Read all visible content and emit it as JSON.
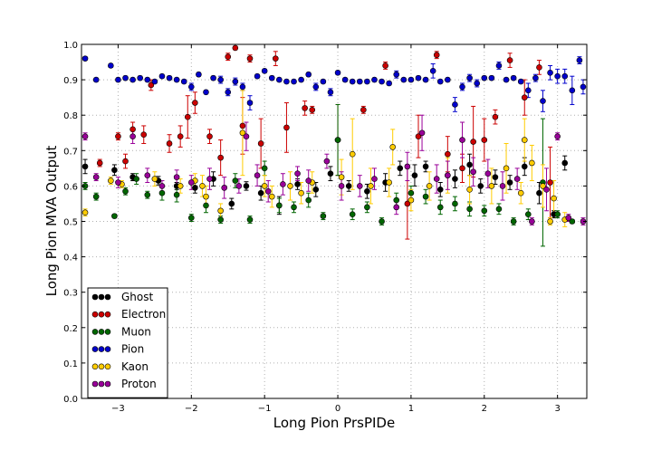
{
  "chart_data": {
    "type": "scatter",
    "title": "",
    "xlabel": "Long Pion PrsPIDe",
    "ylabel": "Long Pion MVA Output",
    "xlim": [
      -3.5,
      3.4
    ],
    "ylim": [
      0.0,
      1.0
    ],
    "grid": true,
    "legend_position": "bottom-left",
    "xticks": [
      -3,
      -2,
      -1,
      0,
      1,
      2,
      3
    ],
    "xtick_labels": [
      "−3",
      "−2",
      "−1",
      "0",
      "1",
      "2",
      "3"
    ],
    "yticks": [
      0.0,
      0.1,
      0.2,
      0.3,
      0.4,
      0.5,
      0.6,
      0.7,
      0.8,
      0.9,
      1.0
    ],
    "ytick_labels": [
      "0.0",
      "0.1",
      "0.2",
      "0.3",
      "0.4",
      "0.5",
      "0.6",
      "0.7",
      "0.8",
      "0.9",
      "1.0"
    ],
    "series": [
      {
        "name": "Ghost",
        "color": "#000000",
        "x": [
          -3.45,
          -3.05,
          -2.8,
          -2.45,
          -2.2,
          -1.95,
          -1.7,
          -1.45,
          -1.25,
          -1.05,
          -0.8,
          -0.55,
          -0.3,
          -0.1,
          0.15,
          0.4,
          0.65,
          0.85,
          1.05,
          1.2,
          1.4,
          1.6,
          1.8,
          1.95,
          2.15,
          2.35,
          2.55,
          2.75,
          2.95,
          3.1
        ],
        "y": [
          0.655,
          0.645,
          0.625,
          0.615,
          0.6,
          0.595,
          0.62,
          0.55,
          0.6,
          0.58,
          0.545,
          0.605,
          0.59,
          0.635,
          0.6,
          0.585,
          0.61,
          0.65,
          0.63,
          0.655,
          0.59,
          0.62,
          0.66,
          0.6,
          0.625,
          0.61,
          0.655,
          0.58,
          0.52,
          0.665
        ],
        "err": [
          0.02,
          0.015,
          0.01,
          0.012,
          0.01,
          0.015,
          0.02,
          0.015,
          0.012,
          0.02,
          0.025,
          0.015,
          0.02,
          0.02,
          0.015,
          0.02,
          0.025,
          0.02,
          0.03,
          0.015,
          0.02,
          0.025,
          0.03,
          0.02,
          0.02,
          0.02,
          0.025,
          0.03,
          0.01,
          0.02
        ]
      },
      {
        "name": "Electron",
        "color": "#cc0000",
        "x": [
          -3.25,
          -3.0,
          -2.9,
          -2.8,
          -2.65,
          -2.55,
          -2.3,
          -2.15,
          -2.05,
          -1.95,
          -1.75,
          -1.6,
          -1.5,
          -1.4,
          -1.3,
          -1.2,
          -1.05,
          -0.85,
          -0.7,
          -0.45,
          -0.35,
          0.0,
          0.35,
          0.65,
          0.95,
          1.1,
          1.35,
          1.5,
          1.7,
          1.85,
          2.0,
          2.15,
          2.35,
          2.55,
          2.75,
          2.9
        ],
        "y": [
          0.665,
          0.74,
          0.67,
          0.76,
          0.745,
          0.885,
          0.72,
          0.74,
          0.795,
          0.835,
          0.74,
          0.68,
          0.965,
          0.99,
          0.77,
          0.96,
          0.72,
          0.96,
          0.765,
          0.82,
          0.815,
          0.73,
          0.815,
          0.94,
          0.55,
          0.74,
          0.97,
          0.69,
          0.65,
          0.725,
          0.73,
          0.795,
          0.955,
          0.85,
          0.935,
          0.61
        ],
        "err": [
          0.01,
          0.01,
          0.02,
          0.02,
          0.025,
          0.015,
          0.025,
          0.03,
          0.06,
          0.03,
          0.02,
          0.05,
          0.01,
          0.005,
          0.08,
          0.01,
          0.07,
          0.02,
          0.07,
          0.02,
          0.01,
          0.1,
          0.01,
          0.01,
          0.1,
          0.06,
          0.01,
          0.05,
          0.04,
          0.1,
          0.06,
          0.02,
          0.02,
          0.05,
          0.02,
          0.1
        ]
      },
      {
        "name": "Muon",
        "color": "#006600",
        "x": [
          -3.45,
          -3.3,
          -3.05,
          -2.9,
          -2.75,
          -2.6,
          -2.4,
          -2.2,
          -2.0,
          -1.8,
          -1.6,
          -1.4,
          -1.2,
          -1.0,
          -0.8,
          -0.6,
          -0.4,
          -0.2,
          0.0,
          0.2,
          0.4,
          0.6,
          0.8,
          1.0,
          1.2,
          1.4,
          1.6,
          1.8,
          2.0,
          2.2,
          2.4,
          2.6,
          2.8,
          3.0,
          3.2
        ],
        "y": [
          0.6,
          0.57,
          0.515,
          0.585,
          0.62,
          0.575,
          0.58,
          0.575,
          0.51,
          0.545,
          0.505,
          0.615,
          0.505,
          0.65,
          0.545,
          0.54,
          0.56,
          0.515,
          0.73,
          0.52,
          0.54,
          0.5,
          0.56,
          0.58,
          0.57,
          0.54,
          0.55,
          0.535,
          0.53,
          0.535,
          0.5,
          0.52,
          0.61,
          0.52,
          0.5
        ],
        "err": [
          0.01,
          0.01,
          0.005,
          0.01,
          0.015,
          0.01,
          0.02,
          0.02,
          0.01,
          0.02,
          0.01,
          0.02,
          0.01,
          0.02,
          0.02,
          0.015,
          0.02,
          0.01,
          0.1,
          0.015,
          0.015,
          0.01,
          0.02,
          0.02,
          0.02,
          0.02,
          0.02,
          0.02,
          0.015,
          0.015,
          0.01,
          0.015,
          0.18,
          0.01,
          0.005
        ]
      },
      {
        "name": "Pion",
        "color": "#0000cc",
        "x": [
          -3.45,
          -3.3,
          -3.1,
          -3.0,
          -2.9,
          -2.8,
          -2.7,
          -2.6,
          -2.5,
          -2.4,
          -2.3,
          -2.2,
          -2.1,
          -2.0,
          -1.9,
          -1.8,
          -1.7,
          -1.6,
          -1.5,
          -1.4,
          -1.3,
          -1.2,
          -1.1,
          -1.0,
          -0.9,
          -0.8,
          -0.7,
          -0.6,
          -0.5,
          -0.4,
          -0.3,
          -0.2,
          -0.1,
          0.0,
          0.1,
          0.2,
          0.3,
          0.4,
          0.5,
          0.6,
          0.7,
          0.8,
          0.9,
          1.0,
          1.1,
          1.2,
          1.3,
          1.4,
          1.5,
          1.6,
          1.7,
          1.8,
          1.9,
          2.0,
          2.1,
          2.2,
          2.3,
          2.4,
          2.5,
          2.6,
          2.7,
          2.8,
          2.9,
          3.0,
          3.1,
          3.2,
          3.3,
          3.35
        ],
        "y": [
          0.96,
          0.9,
          0.94,
          0.9,
          0.905,
          0.9,
          0.905,
          0.9,
          0.895,
          0.91,
          0.905,
          0.9,
          0.895,
          0.88,
          0.915,
          0.865,
          0.905,
          0.9,
          0.865,
          0.895,
          0.88,
          0.835,
          0.91,
          0.925,
          0.905,
          0.9,
          0.895,
          0.895,
          0.9,
          0.915,
          0.88,
          0.895,
          0.865,
          0.92,
          0.9,
          0.895,
          0.895,
          0.895,
          0.9,
          0.895,
          0.89,
          0.915,
          0.9,
          0.9,
          0.905,
          0.9,
          0.925,
          0.895,
          0.9,
          0.83,
          0.88,
          0.905,
          0.89,
          0.905,
          0.905,
          0.94,
          0.9,
          0.905,
          0.895,
          0.87,
          0.905,
          0.84,
          0.92,
          0.91,
          0.91,
          0.87,
          0.955,
          0.88
        ],
        "err": [
          0.005,
          0.005,
          0.005,
          0.005,
          0.005,
          0.005,
          0.005,
          0.005,
          0.005,
          0.005,
          0.005,
          0.005,
          0.005,
          0.01,
          0.005,
          0.005,
          0.005,
          0.01,
          0.01,
          0.01,
          0.01,
          0.02,
          0.005,
          0.005,
          0.005,
          0.005,
          0.005,
          0.005,
          0.005,
          0.005,
          0.01,
          0.005,
          0.01,
          0.005,
          0.005,
          0.005,
          0.005,
          0.005,
          0.005,
          0.005,
          0.005,
          0.01,
          0.005,
          0.005,
          0.005,
          0.005,
          0.02,
          0.005,
          0.005,
          0.02,
          0.01,
          0.01,
          0.01,
          0.005,
          0.005,
          0.01,
          0.005,
          0.005,
          0.005,
          0.02,
          0.01,
          0.03,
          0.02,
          0.02,
          0.02,
          0.04,
          0.01,
          0.02
        ]
      },
      {
        "name": "Kaon",
        "color": "#ffcc00",
        "x": [
          -3.45,
          -3.1,
          -2.95,
          -2.5,
          -2.15,
          -1.95,
          -1.85,
          -1.8,
          -1.6,
          -1.3,
          -1.0,
          -0.9,
          -0.65,
          -0.5,
          -0.35,
          0.05,
          0.2,
          0.45,
          0.7,
          0.75,
          1.0,
          1.25,
          1.5,
          1.8,
          2.1,
          2.3,
          2.5,
          2.55,
          2.65,
          2.8,
          2.9,
          2.95,
          3.1
        ],
        "y": [
          0.525,
          0.615,
          0.605,
          0.62,
          0.6,
          0.615,
          0.6,
          0.57,
          0.53,
          0.75,
          0.6,
          0.57,
          0.6,
          0.58,
          0.61,
          0.625,
          0.69,
          0.6,
          0.61,
          0.71,
          0.56,
          0.6,
          0.63,
          0.59,
          0.6,
          0.65,
          0.58,
          0.73,
          0.665,
          0.6,
          0.5,
          0.565,
          0.505
        ],
        "err": [
          0.01,
          0.01,
          0.01,
          0.02,
          0.02,
          0.02,
          0.03,
          0.03,
          0.02,
          0.12,
          0.03,
          0.03,
          0.04,
          0.03,
          0.03,
          0.05,
          0.1,
          0.05,
          0.04,
          0.05,
          0.03,
          0.04,
          0.05,
          0.04,
          0.05,
          0.07,
          0.03,
          0.06,
          0.05,
          0.06,
          0.01,
          0.05,
          0.02
        ]
      },
      {
        "name": "Proton",
        "color": "#990099",
        "x": [
          -3.45,
          -3.3,
          -3.0,
          -2.8,
          -2.6,
          -2.4,
          -2.2,
          -2.0,
          -1.75,
          -1.55,
          -1.35,
          -1.25,
          -1.1,
          -0.95,
          -0.75,
          -0.55,
          -0.4,
          -0.15,
          0.05,
          0.3,
          0.5,
          0.8,
          0.95,
          1.15,
          1.35,
          1.5,
          1.7,
          1.85,
          2.05,
          2.25,
          2.45,
          2.65,
          2.85,
          3.0,
          3.15,
          3.35
        ],
        "y": [
          0.74,
          0.625,
          0.61,
          0.74,
          0.63,
          0.6,
          0.625,
          0.61,
          0.62,
          0.595,
          0.6,
          0.74,
          0.63,
          0.585,
          0.605,
          0.635,
          0.615,
          0.67,
          0.6,
          0.6,
          0.62,
          0.54,
          0.655,
          0.75,
          0.62,
          0.63,
          0.73,
          0.64,
          0.635,
          0.6,
          0.62,
          0.5,
          0.59,
          0.74,
          0.51,
          0.5
        ],
        "err": [
          0.01,
          0.01,
          0.015,
          0.02,
          0.02,
          0.015,
          0.02,
          0.02,
          0.03,
          0.03,
          0.02,
          0.04,
          0.03,
          0.03,
          0.03,
          0.02,
          0.03,
          0.02,
          0.04,
          0.03,
          0.03,
          0.02,
          0.04,
          0.05,
          0.04,
          0.04,
          0.05,
          0.04,
          0.04,
          0.04,
          0.03,
          0.01,
          0.06,
          0.01,
          0.01,
          0.01
        ]
      }
    ]
  }
}
